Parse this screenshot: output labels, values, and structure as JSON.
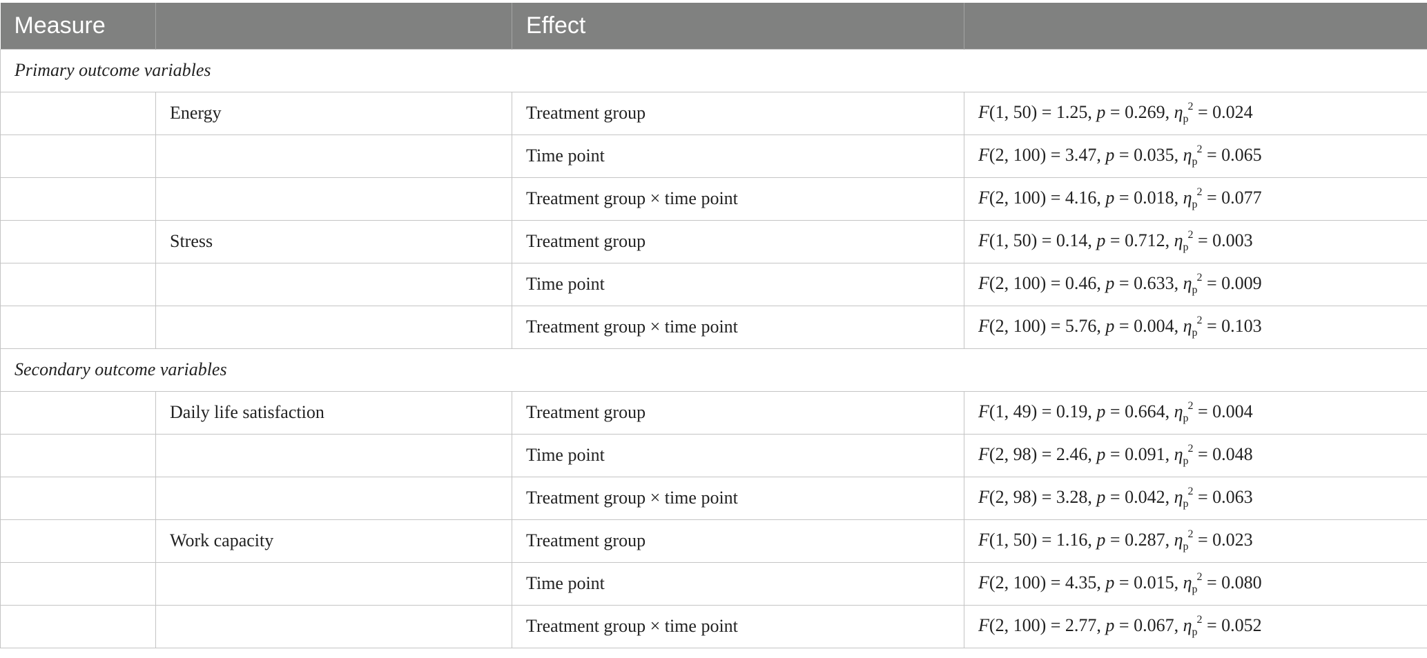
{
  "table": {
    "headers": [
      "Measure",
      "",
      "Effect",
      ""
    ],
    "rows": [
      {
        "type": "section",
        "label": "Primary outcome variables"
      },
      {
        "type": "data",
        "measure": "Energy",
        "effect": "Treatment group",
        "df": "1, 50",
        "F": "1.25",
        "p": "0.269",
        "eta": "0.024"
      },
      {
        "type": "data",
        "measure": "",
        "effect": "Time point",
        "df": "2, 100",
        "F": "3.47",
        "p": "0.035",
        "eta": "0.065"
      },
      {
        "type": "data",
        "measure": "",
        "effect": "Treatment group × time point",
        "df": "2, 100",
        "F": "4.16",
        "p": "0.018",
        "eta": "0.077"
      },
      {
        "type": "data",
        "measure": "Stress",
        "effect": "Treatment group",
        "df": "1, 50",
        "F": "0.14",
        "p": "0.712",
        "eta": "0.003"
      },
      {
        "type": "data",
        "measure": "",
        "effect": "Time point",
        "df": "2, 100",
        "F": "0.46",
        "p": "0.633",
        "eta": "0.009"
      },
      {
        "type": "data",
        "measure": "",
        "effect": "Treatment group × time point",
        "df": "2, 100",
        "F": "5.76",
        "p": "0.004",
        "eta": "0.103"
      },
      {
        "type": "section",
        "label": "Secondary outcome variables"
      },
      {
        "type": "data",
        "measure": "Daily life satisfaction",
        "effect": "Treatment group",
        "df": "1, 49",
        "F": "0.19",
        "p": "0.664",
        "eta": "0.004"
      },
      {
        "type": "data",
        "measure": "",
        "effect": "Time point",
        "df": "2, 98",
        "F": "2.46",
        "p": "0.091",
        "eta": "0.048"
      },
      {
        "type": "data",
        "measure": "",
        "effect": "Treatment group × time point",
        "df": "2, 98",
        "F": "3.28",
        "p": "0.042",
        "eta": "0.063"
      },
      {
        "type": "data",
        "measure": "Work capacity",
        "effect": "Treatment group",
        "df": "1, 50",
        "F": "1.16",
        "p": "0.287",
        "eta": "0.023"
      },
      {
        "type": "data",
        "measure": "",
        "effect": "Time point",
        "df": "2, 100",
        "F": "4.35",
        "p": "0.015",
        "eta": "0.080"
      },
      {
        "type": "data",
        "measure": "",
        "effect": "Treatment group × time point",
        "df": "2, 100",
        "F": "2.77",
        "p": "0.067",
        "eta": "0.052"
      }
    ]
  },
  "colors": {
    "header_background": "#808180",
    "header_text": "#ffffff",
    "grid_lines": "#c4c4c4",
    "body_text": "#222222"
  }
}
